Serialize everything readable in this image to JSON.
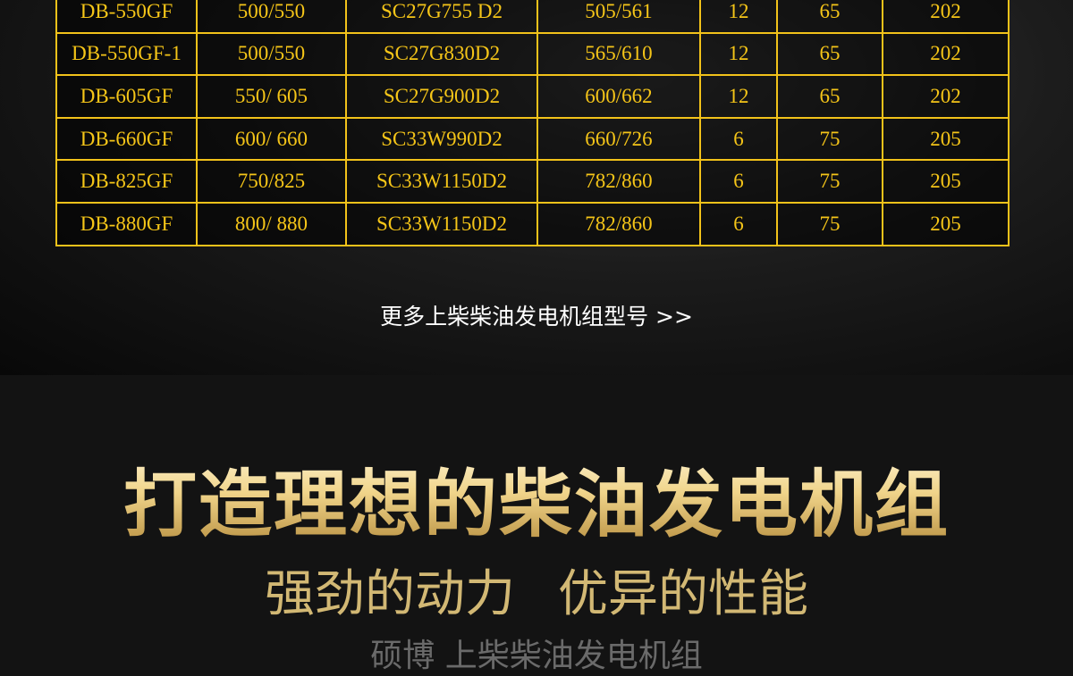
{
  "table": {
    "rows": [
      [
        "DB-550GF",
        "500/550",
        "SC27G755 D2",
        "505/561",
        "12",
        "65",
        "202"
      ],
      [
        "DB-550GF-1",
        "500/550",
        "SC27G830D2",
        "565/610",
        "12",
        "65",
        "202"
      ],
      [
        "DB-605GF",
        "550/ 605",
        "SC27G900D2",
        "600/662",
        "12",
        "65",
        "202"
      ],
      [
        "DB-660GF",
        "600/ 660",
        "SC33W990D2",
        "660/726",
        "6",
        "75",
        "205"
      ],
      [
        "DB-825GF",
        "750/825",
        "SC33W1150D2",
        "782/860",
        "6",
        "75",
        "205"
      ],
      [
        "DB-880GF",
        "800/ 880",
        "SC33W1150D2",
        "782/860",
        "6",
        "75",
        "205"
      ]
    ]
  },
  "more_link": "更多上柴柴油发电机组型号 >>",
  "headline": "打造理想的柴油发电机组",
  "subline": {
    "left": "强劲的动力",
    "right": "优异的性能"
  },
  "brandline": "硕博 上柴柴油发电机组",
  "colors": {
    "table_text": "#f5c518",
    "table_border": "#f2c21a",
    "subline": "#d2b874"
  }
}
